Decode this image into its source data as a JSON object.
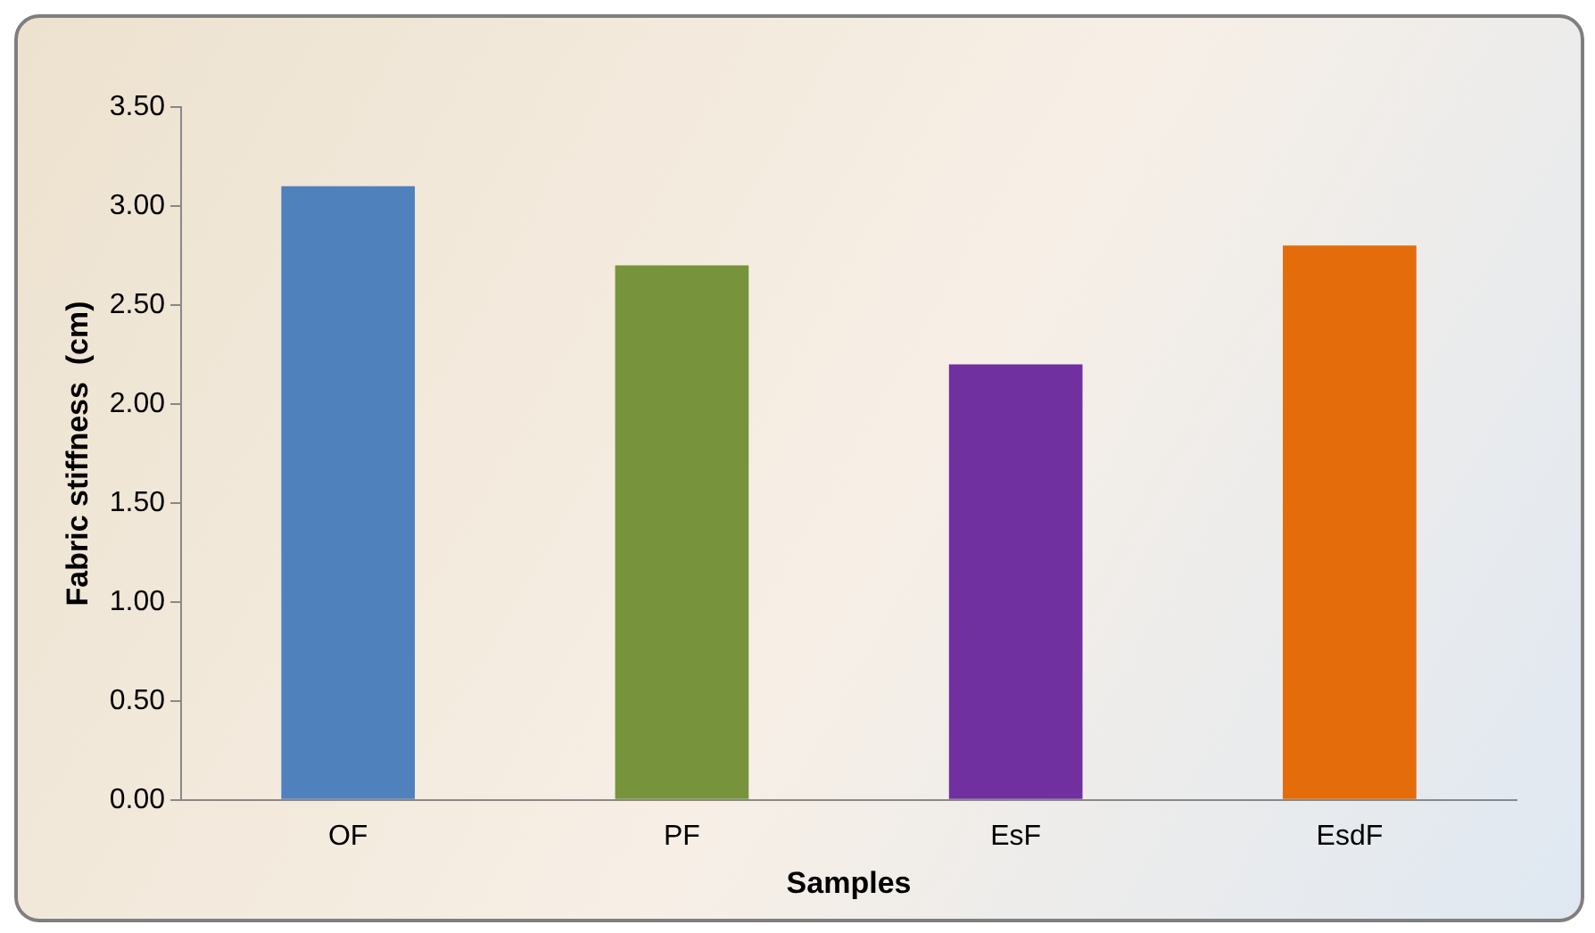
{
  "chart_data": {
    "type": "bar",
    "xlabel": "Samples",
    "ylabel": "Fabric stiffness  (cm)",
    "categories": [
      "OF",
      "PF",
      "EsF",
      "EsdF"
    ],
    "values": [
      3.1,
      2.7,
      2.2,
      2.8
    ],
    "colors": [
      "#4f81bd",
      "#77933c",
      "#7030a0",
      "#e46c0a"
    ],
    "ylim": [
      0,
      3.5
    ],
    "yticks": [
      {
        "value": 0,
        "label": "0.00"
      },
      {
        "value": 0.5,
        "label": "0.50"
      },
      {
        "value": 1,
        "label": "1.00"
      },
      {
        "value": 1.5,
        "label": "1.50"
      },
      {
        "value": 2,
        "label": "2.00"
      },
      {
        "value": 2.5,
        "label": "2.50"
      },
      {
        "value": 3,
        "label": "3.00"
      },
      {
        "value": 3.5,
        "label": "3.50"
      }
    ],
    "grid": false
  }
}
